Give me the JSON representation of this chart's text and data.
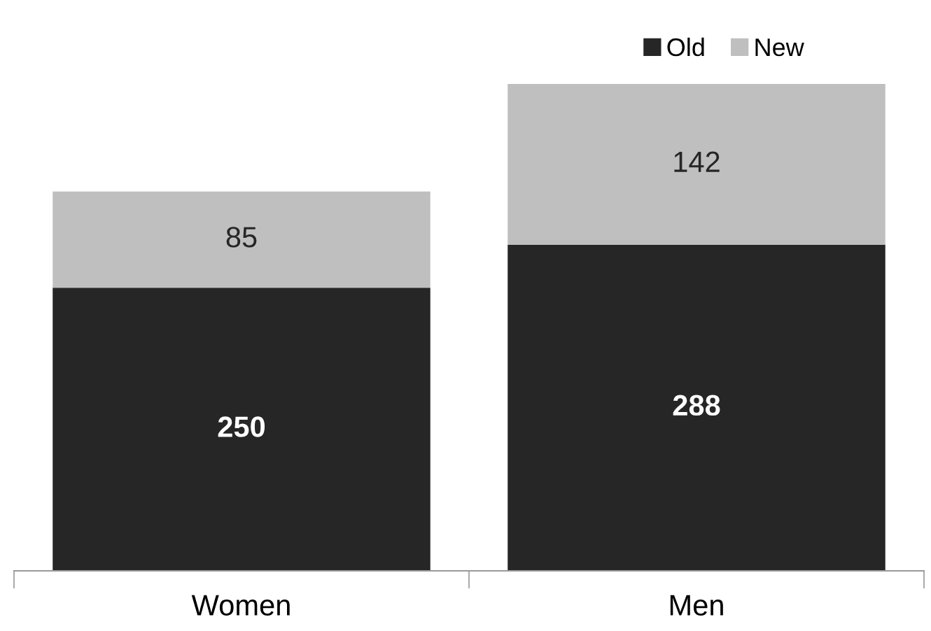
{
  "chart_data": {
    "type": "bar",
    "stacked": true,
    "data_labels": true,
    "legend": "top right",
    "categories": [
      "Women",
      "Men"
    ],
    "series": [
      {
        "name": "Old",
        "color": "#262626",
        "values": [
          250,
          288
        ]
      },
      {
        "name": "New",
        "color": "#bfbfbf",
        "values": [
          85,
          142
        ]
      }
    ]
  }
}
